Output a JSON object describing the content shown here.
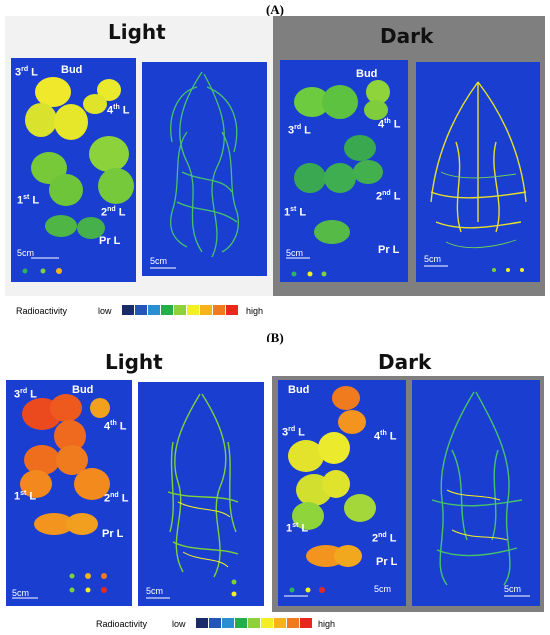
{
  "panels": [
    {
      "label": "(A)",
      "conditions": [
        {
          "title": "Light",
          "leaves": {
            "l3": "3",
            "bud": "Bud",
            "l4": "4",
            "l1": "1",
            "l2": "2",
            "pr": "Pr L"
          },
          "scale_leaf": "5cm",
          "scale_root": "5cm"
        },
        {
          "title": "Dark",
          "leaves": {
            "l3": "3",
            "bud": "Bud",
            "l4": "4",
            "l1": "1",
            "l2": "2",
            "pr": "Pr L"
          },
          "scale_leaf": "5cm",
          "scale_root": "5cm"
        }
      ],
      "legend": {
        "title": "Radioactivity",
        "low": "low",
        "high": "high"
      }
    },
    {
      "label": "(B)",
      "conditions": [
        {
          "title": "Light",
          "leaves": {
            "l3": "3",
            "bud": "Bud",
            "l4": "4",
            "l1": "1",
            "l2": "2",
            "pr": "Pr L"
          },
          "scale_leaf": "5cm",
          "scale_root": "5cm"
        },
        {
          "title": "Dark",
          "leaves": {
            "l3": "3",
            "bud": "Bud",
            "l4": "4",
            "l1": "1",
            "l2": "2",
            "pr": "Pr L"
          },
          "scale_leaf": "5cm",
          "scale_root": "5cm"
        }
      ],
      "legend": {
        "title": "Radioactivity",
        "low": "low",
        "high": "high"
      }
    }
  ],
  "ordinal_suffixes": {
    "rd": "rd",
    "th": "th",
    "st": "st",
    "nd": "nd"
  },
  "leaf_suffix": " L",
  "colorscale": [
    "#1b2a6b",
    "#2456b8",
    "#2a8fd0",
    "#23b04a",
    "#8fd13a",
    "#f2ef24",
    "#f7b21c",
    "#f27a1e",
    "#e8281e"
  ]
}
